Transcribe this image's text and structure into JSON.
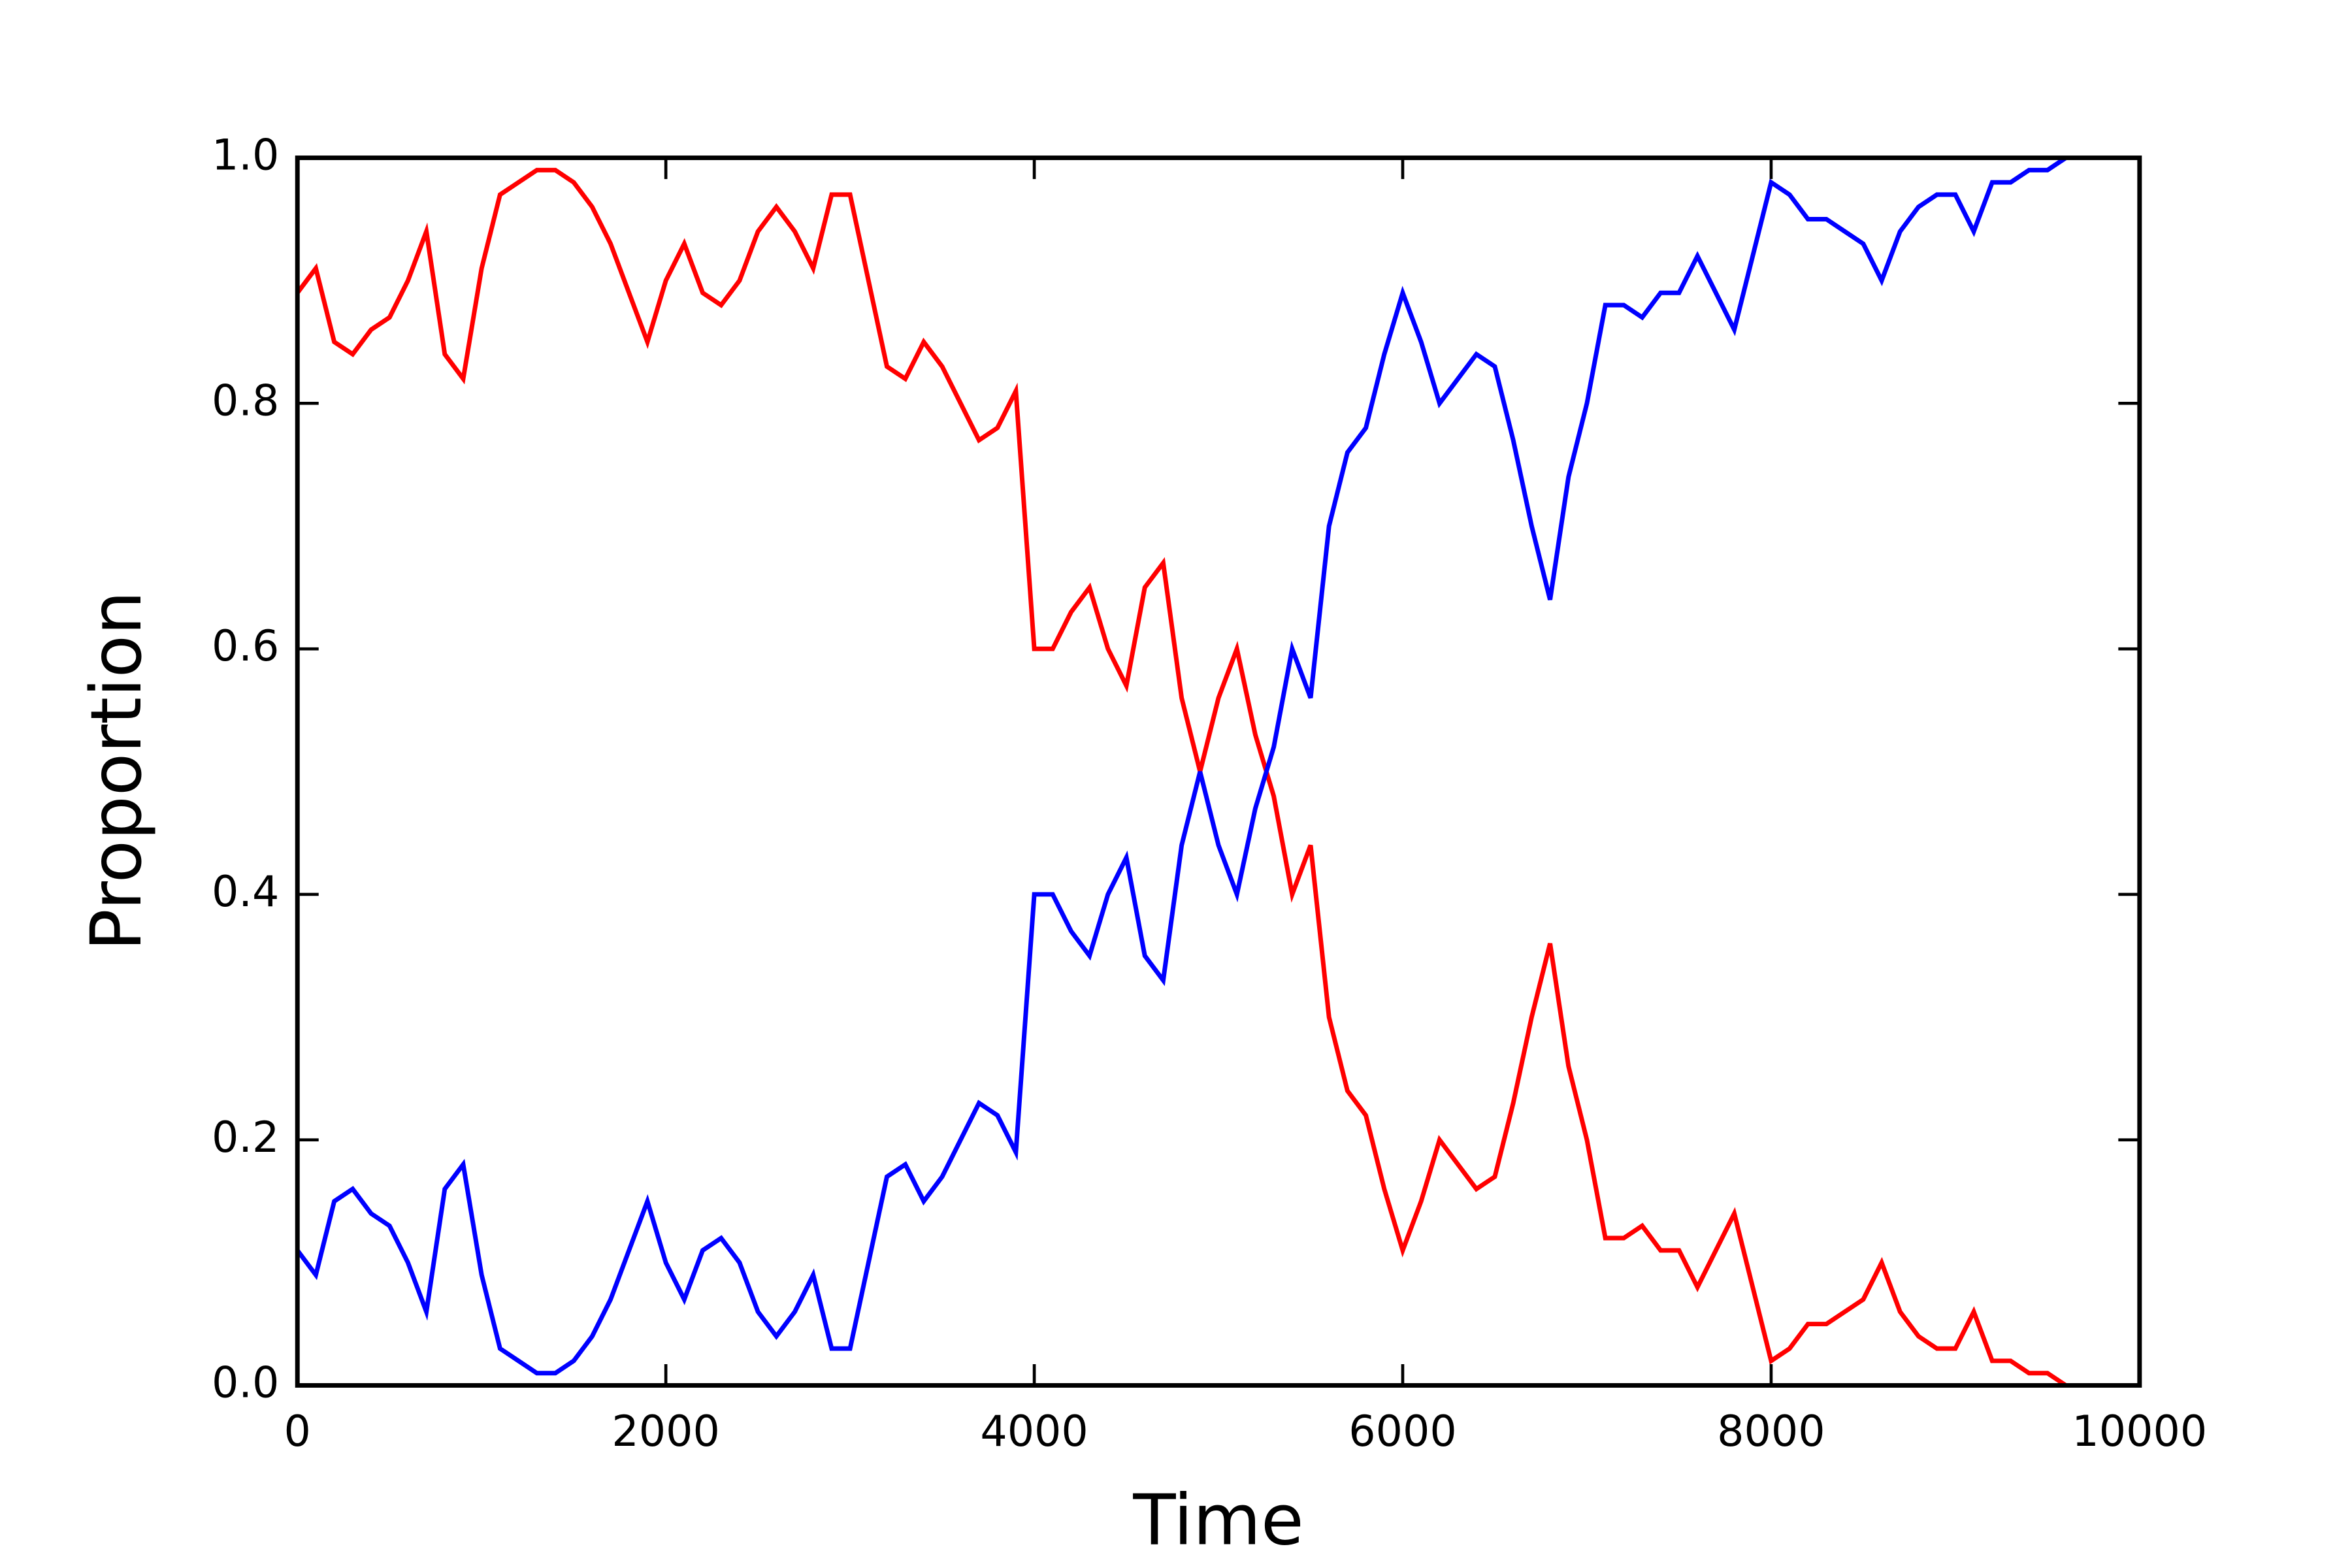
{
  "chart_data": {
    "type": "line",
    "xlabel": "Time",
    "ylabel": "Proportion",
    "x": [
      0,
      100,
      200,
      300,
      400,
      500,
      600,
      700,
      800,
      900,
      1000,
      1100,
      1200,
      1300,
      1400,
      1500,
      1600,
      1700,
      1800,
      1900,
      2000,
      2100,
      2200,
      2300,
      2400,
      2500,
      2600,
      2700,
      2800,
      2900,
      3000,
      3100,
      3200,
      3300,
      3400,
      3500,
      3600,
      3700,
      3800,
      3900,
      4000,
      4100,
      4200,
      4300,
      4400,
      4500,
      4600,
      4700,
      4800,
      4900,
      5000,
      5100,
      5200,
      5300,
      5400,
      5500,
      5600,
      5700,
      5800,
      5900,
      6000,
      6100,
      6200,
      6300,
      6400,
      6500,
      6600,
      6700,
      6800,
      6900,
      7000,
      7100,
      7200,
      7300,
      7400,
      7500,
      7600,
      7700,
      7800,
      7900,
      8000,
      8100,
      8200,
      8300,
      8400,
      8500,
      8600,
      8700,
      8800,
      8900,
      9000,
      9100,
      9200,
      9300,
      9400,
      9500,
      9600
    ],
    "series": [
      {
        "color": "#ff0000",
        "values": [
          0.89,
          0.91,
          0.85,
          0.84,
          0.86,
          0.87,
          0.9,
          0.94,
          0.84,
          0.82,
          0.91,
          0.97,
          0.98,
          0.99,
          0.99,
          0.98,
          0.96,
          0.93,
          0.89,
          0.85,
          0.9,
          0.93,
          0.89,
          0.88,
          0.9,
          0.94,
          0.96,
          0.94,
          0.91,
          0.97,
          0.97,
          0.9,
          0.83,
          0.82,
          0.85,
          0.83,
          0.8,
          0.77,
          0.78,
          0.81,
          0.6,
          0.6,
          0.63,
          0.65,
          0.6,
          0.57,
          0.65,
          0.67,
          0.56,
          0.5,
          0.56,
          0.6,
          0.53,
          0.48,
          0.4,
          0.44,
          0.3,
          0.24,
          0.22,
          0.16,
          0.11,
          0.15,
          0.2,
          0.18,
          0.16,
          0.17,
          0.23,
          0.3,
          0.36,
          0.26,
          0.2,
          0.12,
          0.12,
          0.13,
          0.11,
          0.11,
          0.08,
          0.11,
          0.14,
          0.08,
          0.02,
          0.03,
          0.05,
          0.05,
          0.06,
          0.07,
          0.1,
          0.06,
          0.04,
          0.03,
          0.03,
          0.06,
          0.02,
          0.02,
          0.01,
          0.01,
          0.0
        ]
      },
      {
        "color": "#0000ff",
        "values": [
          0.11,
          0.09,
          0.15,
          0.16,
          0.14,
          0.13,
          0.1,
          0.06,
          0.16,
          0.18,
          0.09,
          0.03,
          0.02,
          0.01,
          0.01,
          0.02,
          0.04,
          0.07,
          0.11,
          0.15,
          0.1,
          0.07,
          0.11,
          0.12,
          0.1,
          0.06,
          0.04,
          0.06,
          0.09,
          0.03,
          0.03,
          0.1,
          0.17,
          0.18,
          0.15,
          0.17,
          0.2,
          0.23,
          0.22,
          0.19,
          0.4,
          0.4,
          0.37,
          0.35,
          0.4,
          0.43,
          0.35,
          0.33,
          0.44,
          0.5,
          0.44,
          0.4,
          0.47,
          0.52,
          0.6,
          0.56,
          0.7,
          0.76,
          0.78,
          0.84,
          0.89,
          0.85,
          0.8,
          0.82,
          0.84,
          0.83,
          0.77,
          0.7,
          0.64,
          0.74,
          0.8,
          0.88,
          0.88,
          0.87,
          0.89,
          0.89,
          0.92,
          0.89,
          0.86,
          0.92,
          0.98,
          0.97,
          0.95,
          0.95,
          0.94,
          0.93,
          0.9,
          0.94,
          0.96,
          0.97,
          0.97,
          0.94,
          0.98,
          0.98,
          0.99,
          0.99,
          1.0
        ]
      }
    ],
    "xlim": [
      0,
      10000
    ],
    "xticks": [
      0,
      2000,
      4000,
      6000,
      8000,
      10000
    ],
    "ylim": [
      0,
      1
    ],
    "yticks": [
      {
        "value": 0,
        "label": "0.0"
      },
      0.2,
      0.4,
      0.6,
      0.8,
      {
        "value": 1,
        "label": "1.0"
      }
    ],
    "grid": false
  }
}
